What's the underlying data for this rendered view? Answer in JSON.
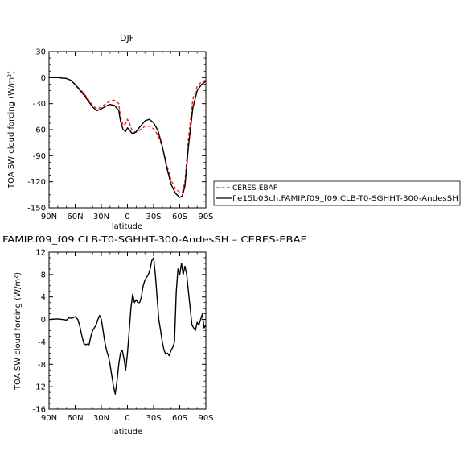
{
  "chart_data": [
    {
      "type": "line",
      "title": "DJF",
      "xlabel": "latitude",
      "ylabel": "TOA SW cloud forcing (W/m²)",
      "xlim": [
        90,
        -90
      ],
      "ylim": [
        -150,
        30
      ],
      "yticks": [
        30,
        0,
        -30,
        -60,
        -90,
        -120,
        -150
      ],
      "xticks": [
        90,
        60,
        30,
        0,
        -30,
        -60,
        -90
      ],
      "xtick_labels": [
        "90N",
        "60N",
        "30N",
        "0",
        "30S",
        "60S",
        "90S"
      ],
      "grid": false,
      "legend_position": "right",
      "series": [
        {
          "name": "CERES-EBAF",
          "color": "#e8231f",
          "dash": true,
          "x": [
            90,
            80,
            75,
            70,
            65,
            60,
            55,
            50,
            45,
            40,
            35,
            30,
            25,
            20,
            15,
            10,
            8,
            5,
            2,
            0,
            -2,
            -5,
            -8,
            -10,
            -15,
            -20,
            -25,
            -30,
            -35,
            -40,
            -45,
            -50,
            -55,
            -60,
            -63,
            -66,
            -70,
            -75,
            -80,
            -85,
            -90
          ],
          "y": [
            0,
            0,
            -0.5,
            -1,
            -3,
            -8,
            -13,
            -18,
            -25,
            -32,
            -36,
            -34,
            -30,
            -27,
            -26,
            -30,
            -45,
            -55,
            -53,
            -48,
            -52,
            -60,
            -63,
            -63,
            -60,
            -56,
            -56,
            -59,
            -66,
            -80,
            -100,
            -118,
            -128,
            -132,
            -132,
            -120,
            -70,
            -25,
            -10,
            -5,
            -3
          ]
        },
        {
          "name": "f.e15b03ch.FAMIP.f09_f09.CLB-T0-SGHHT-300-AndesSH",
          "color": "#000000",
          "dash": false,
          "x": [
            90,
            80,
            75,
            70,
            65,
            60,
            55,
            50,
            45,
            40,
            35,
            30,
            25,
            20,
            15,
            10,
            8,
            5,
            2,
            0,
            -2,
            -5,
            -8,
            -10,
            -15,
            -20,
            -25,
            -30,
            -35,
            -40,
            -45,
            -50,
            -55,
            -60,
            -63,
            -66,
            -70,
            -75,
            -80,
            -85,
            -90
          ],
          "y": [
            0,
            0,
            -0.5,
            -1,
            -3,
            -8,
            -14,
            -20,
            -27,
            -34,
            -38,
            -36,
            -33,
            -31,
            -32,
            -38,
            -50,
            -60,
            -62,
            -58,
            -60,
            -64,
            -64,
            -62,
            -56,
            -50,
            -48,
            -52,
            -61,
            -79,
            -103,
            -123,
            -133,
            -138,
            -136,
            -125,
            -80,
            -35,
            -15,
            -8,
            -4
          ]
        }
      ]
    },
    {
      "type": "line",
      "title": "FAMIP.f09_f09.CLB-T0-SGHHT-300-AndesSH – CERES-EBAF",
      "xlabel": "latitude",
      "ylabel": "TOA SW cloud forcing (W/m²)",
      "xlim": [
        90,
        -90
      ],
      "ylim": [
        -16,
        12
      ],
      "yticks": [
        12,
        8,
        4,
        0,
        -4,
        -8,
        -12,
        -16
      ],
      "xticks": [
        90,
        60,
        30,
        0,
        -30,
        -60,
        -90
      ],
      "xtick_labels": [
        "90N",
        "60N",
        "30N",
        "0",
        "30S",
        "60S",
        "90S"
      ],
      "grid": false,
      "series": [
        {
          "color": "#000000",
          "x": [
            90,
            80,
            75,
            70,
            67,
            64,
            60,
            57,
            55,
            53,
            50,
            48,
            46,
            44,
            42,
            40,
            38,
            36,
            34,
            32,
            30,
            28,
            26,
            24,
            22,
            20,
            18,
            16,
            14,
            12,
            10,
            8,
            6,
            4,
            2,
            0,
            -2,
            -4,
            -6,
            -8,
            -10,
            -12,
            -14,
            -16,
            -18,
            -20,
            -22,
            -24,
            -26,
            -28,
            -30,
            -32,
            -34,
            -36,
            -38,
            -40,
            -42,
            -44,
            -46,
            -48,
            -50,
            -52,
            -54,
            -56,
            -58,
            -60,
            -62,
            -64,
            -66,
            -68,
            -70,
            -72,
            -74,
            -76,
            -78,
            -80,
            -82,
            -84,
            -86,
            -88,
            -90
          ],
          "y": [
            0,
            0.1,
            0,
            -0.1,
            0.3,
            0.2,
            0.5,
            0,
            -1,
            -2.5,
            -4.3,
            -4.5,
            -4.4,
            -4.5,
            -3,
            -2,
            -1.5,
            -1,
            0,
            0.7,
            0,
            -2,
            -4,
            -5.5,
            -6.5,
            -8,
            -10,
            -12,
            -13.3,
            -11,
            -8,
            -6,
            -5.5,
            -7,
            -9,
            -6,
            -2,
            2,
            4.5,
            3,
            3.5,
            3,
            3,
            4,
            6,
            7,
            7.5,
            8,
            9,
            10.5,
            11,
            8,
            4,
            0,
            -2,
            -4,
            -5.5,
            -6.2,
            -6,
            -6.5,
            -5.5,
            -5,
            -4,
            5,
            9,
            8,
            10,
            8,
            9.5,
            8,
            5,
            2,
            -1,
            -1.5,
            -2,
            -0.5,
            -1,
            0,
            1,
            -1.5,
            -1
          ]
        }
      ]
    }
  ]
}
